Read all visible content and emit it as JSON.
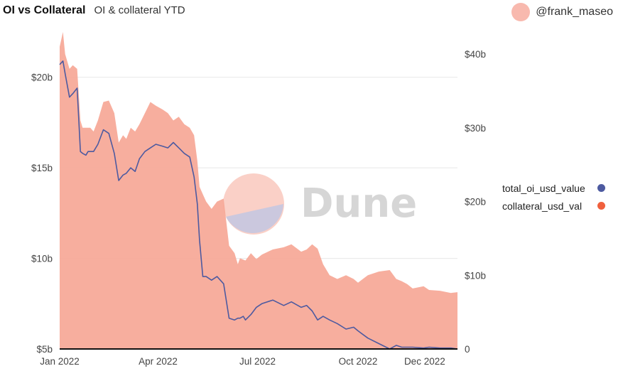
{
  "header": {
    "title": "OI vs Collateral",
    "subtitle": "OI & collateral YTD",
    "author": "@frank_maseo"
  },
  "watermark": "Dune",
  "colors": {
    "oi": "#4d5aa0",
    "collateral_fill": "#f6a796",
    "collateral_dot": "#f0603d",
    "grid": "#e8e8e8",
    "avatar": "#f8b9ae"
  },
  "chart_data": {
    "type": "line",
    "x_ticks": [
      "Jan 2022",
      "Apr 2022",
      "Jul 2022",
      "Oct 2022",
      "Dec 2022"
    ],
    "x_range": [
      "2022-01-01",
      "2022-12-31"
    ],
    "y_left": {
      "ticks": [
        "$5b",
        "$10b",
        "$15b",
        "$20b"
      ],
      "range": [
        5,
        22.5
      ],
      "unit": "billion USD"
    },
    "y_right": {
      "ticks": [
        "0",
        "$10b",
        "$20b",
        "$30b",
        "$40b"
      ],
      "range": [
        0,
        43
      ],
      "unit": "billion USD"
    },
    "grid": true,
    "legend_position": "right",
    "series": [
      {
        "name": "total_oi_usd_value",
        "axis": "left",
        "type": "line",
        "x": [
          "2022-01-01",
          "2022-01-04",
          "2022-01-06",
          "2022-01-10",
          "2022-01-13",
          "2022-01-17",
          "2022-01-20",
          "2022-01-22",
          "2022-01-25",
          "2022-01-27",
          "2022-01-29",
          "2022-02-01",
          "2022-02-05",
          "2022-02-10",
          "2022-02-15",
          "2022-02-20",
          "2022-02-24",
          "2022-02-28",
          "2022-03-03",
          "2022-03-07",
          "2022-03-11",
          "2022-03-15",
          "2022-03-20",
          "2022-03-25",
          "2022-03-30",
          "2022-04-05",
          "2022-04-10",
          "2022-04-15",
          "2022-04-20",
          "2022-04-25",
          "2022-04-30",
          "2022-05-04",
          "2022-05-07",
          "2022-05-09",
          "2022-05-12",
          "2022-05-15",
          "2022-05-20",
          "2022-05-25",
          "2022-05-31",
          "2022-06-05",
          "2022-06-10",
          "2022-06-13",
          "2022-06-15",
          "2022-06-18",
          "2022-06-20",
          "2022-06-25",
          "2022-06-30",
          "2022-07-05",
          "2022-07-15",
          "2022-07-25",
          "2022-08-01",
          "2022-08-10",
          "2022-08-15",
          "2022-08-20",
          "2022-08-25",
          "2022-08-30",
          "2022-09-05",
          "2022-09-12",
          "2022-09-20",
          "2022-09-27",
          "2022-10-01",
          "2022-10-10",
          "2022-10-20",
          "2022-10-30",
          "2022-11-05",
          "2022-11-10",
          "2022-11-15",
          "2022-11-20",
          "2022-11-30",
          "2022-12-05",
          "2022-12-15",
          "2022-12-25",
          "2022-12-31"
        ],
        "values": [
          20.7,
          20.9,
          20.2,
          18.9,
          19.1,
          19.4,
          15.9,
          15.8,
          15.7,
          15.9,
          15.9,
          15.9,
          16.3,
          17.1,
          16.9,
          15.8,
          14.3,
          14.6,
          14.7,
          15.0,
          14.8,
          15.5,
          15.9,
          16.1,
          16.3,
          16.2,
          16.1,
          16.4,
          16.1,
          15.8,
          15.6,
          14.5,
          13.0,
          11.0,
          9.0,
          9.0,
          8.8,
          9.0,
          8.6,
          6.7,
          6.6,
          6.7,
          6.7,
          6.8,
          6.6,
          6.9,
          7.3,
          7.5,
          7.7,
          7.4,
          7.6,
          7.3,
          7.4,
          7.1,
          6.6,
          6.8,
          6.6,
          6.4,
          6.1,
          6.2,
          6.0,
          5.6,
          5.3,
          5.0,
          5.2,
          5.1,
          5.1,
          5.1,
          5.05,
          5.1,
          5.05,
          5.05,
          5.0
        ]
      },
      {
        "name": "collateral_usd_val",
        "axis": "right",
        "type": "area",
        "x": [
          "2022-01-01",
          "2022-01-04",
          "2022-01-06",
          "2022-01-10",
          "2022-01-13",
          "2022-01-17",
          "2022-01-20",
          "2022-01-22",
          "2022-01-25",
          "2022-01-29",
          "2022-02-01",
          "2022-02-05",
          "2022-02-10",
          "2022-02-15",
          "2022-02-20",
          "2022-02-24",
          "2022-02-28",
          "2022-03-03",
          "2022-03-07",
          "2022-03-11",
          "2022-03-15",
          "2022-03-20",
          "2022-03-25",
          "2022-03-30",
          "2022-04-05",
          "2022-04-10",
          "2022-04-15",
          "2022-04-20",
          "2022-04-25",
          "2022-04-30",
          "2022-05-04",
          "2022-05-07",
          "2022-05-09",
          "2022-05-12",
          "2022-05-15",
          "2022-05-20",
          "2022-05-25",
          "2022-05-31",
          "2022-06-05",
          "2022-06-10",
          "2022-06-13",
          "2022-06-15",
          "2022-06-20",
          "2022-06-25",
          "2022-06-30",
          "2022-07-05",
          "2022-07-15",
          "2022-07-25",
          "2022-08-01",
          "2022-08-10",
          "2022-08-15",
          "2022-08-20",
          "2022-08-25",
          "2022-08-30",
          "2022-09-05",
          "2022-09-12",
          "2022-09-20",
          "2022-09-27",
          "2022-10-01",
          "2022-10-10",
          "2022-10-20",
          "2022-10-30",
          "2022-11-05",
          "2022-11-10",
          "2022-11-15",
          "2022-11-20",
          "2022-11-30",
          "2022-12-05",
          "2022-12-15",
          "2022-12-25",
          "2022-12-31"
        ],
        "values": [
          41,
          43,
          40,
          38,
          38.5,
          38,
          31,
          30,
          30,
          30,
          29.5,
          31,
          33.5,
          33.7,
          32,
          28,
          29,
          28.5,
          30,
          29.5,
          30.5,
          32,
          33.5,
          33,
          32.5,
          32,
          31,
          31.5,
          30.5,
          30,
          29,
          25.5,
          22,
          21,
          20,
          19,
          20,
          20.4,
          14,
          13,
          11.5,
          12.3,
          12,
          13,
          12.2,
          12.8,
          13.5,
          13.8,
          14.2,
          13.2,
          13.5,
          14.2,
          13.6,
          11.5,
          10,
          9.5,
          10,
          9.5,
          9,
          10,
          10.5,
          10.7,
          9.5,
          9.2,
          8.8,
          8.2,
          8.5,
          8.0,
          7.9,
          7.6,
          7.7
        ]
      }
    ]
  }
}
